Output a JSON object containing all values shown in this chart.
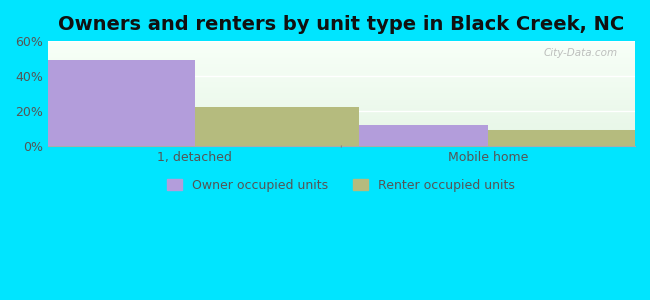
{
  "title": "Owners and renters by unit type in Black Creek, NC",
  "categories": [
    "1, detached",
    "Mobile home"
  ],
  "owner_values": [
    49,
    12
  ],
  "renter_values": [
    22,
    9
  ],
  "owner_color": "#b39ddb",
  "renter_color": "#b5bb7e",
  "owner_label": "Owner occupied units",
  "renter_label": "Renter occupied units",
  "ylim": [
    0,
    60
  ],
  "yticks": [
    0,
    20,
    40,
    60
  ],
  "ytick_labels": [
    "0%",
    "20%",
    "40%",
    "60%"
  ],
  "bar_width": 0.28,
  "group_positions": [
    0.25,
    0.75
  ],
  "background_color": "#00e5ff",
  "title_fontsize": 14,
  "watermark": "City-Data.com"
}
